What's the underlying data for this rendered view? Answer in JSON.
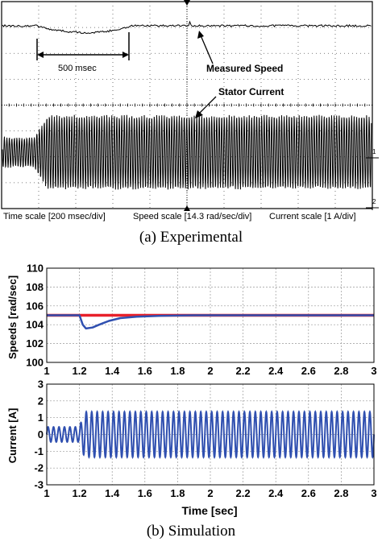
{
  "chart_data": [
    {
      "type": "line",
      "panel": "oscilloscope",
      "annotations": {
        "interval": "500 msec",
        "measured_speed": "Measured Speed",
        "stator_current": "Stator Current"
      },
      "channel_markers": [
        "1",
        "2"
      ],
      "scale_labels": {
        "time": "Time scale [200 msec/div]",
        "speed": "Speed scale [14.3 rad/sec/div]",
        "current": "Current scale [1 A/div]"
      },
      "caption": "(a) Experimental"
    },
    {
      "type": "line",
      "panel": "simulated-speeds",
      "ylabel": "Speeds [rad/sec]",
      "xlim": [
        1,
        3
      ],
      "ylim": [
        100,
        110
      ],
      "xticks": [
        "1",
        "1.2",
        "1.4",
        "1.6",
        "1.8",
        "2",
        "2.2",
        "2.4",
        "2.6",
        "2.8",
        "3"
      ],
      "yticks": [
        "100",
        "102",
        "104",
        "106",
        "108",
        "110"
      ],
      "grid": true,
      "series": [
        {
          "color": "#e8202a",
          "x": [
            1.0,
            1.2,
            1.4,
            1.6,
            1.8,
            2.0,
            2.2,
            2.4,
            2.6,
            2.8,
            3.0
          ],
          "y": [
            105,
            105,
            105,
            105,
            105,
            105,
            105,
            105,
            105,
            105,
            105
          ]
        },
        {
          "color": "#3050b0",
          "x": [
            1.0,
            1.2,
            1.22,
            1.24,
            1.28,
            1.32,
            1.38,
            1.45,
            1.55,
            1.7,
            1.9,
            2.2,
            3.0
          ],
          "y": [
            105,
            105,
            104.0,
            103.6,
            103.7,
            104.0,
            104.4,
            104.7,
            104.85,
            104.95,
            105,
            105,
            105
          ]
        }
      ]
    },
    {
      "type": "line",
      "panel": "simulated-current",
      "ylabel": "Current [A]",
      "xlabel": "Time [sec]",
      "xlim": [
        1,
        3
      ],
      "ylim": [
        -3,
        3
      ],
      "xticks": [
        "1",
        "1.2",
        "1.4",
        "1.6",
        "1.8",
        "2",
        "2.2",
        "2.4",
        "2.6",
        "2.8",
        "3"
      ],
      "yticks": [
        "-3",
        "-2",
        "-1",
        "0",
        "1",
        "2",
        "3"
      ],
      "grid": true,
      "series": [
        {
          "color": "#3050b0",
          "frequency_hz": 30,
          "step_time": 1.2,
          "amplitude_before": 0.45,
          "amplitude_after": 1.35
        }
      ],
      "caption": "(b) Simulation"
    }
  ]
}
